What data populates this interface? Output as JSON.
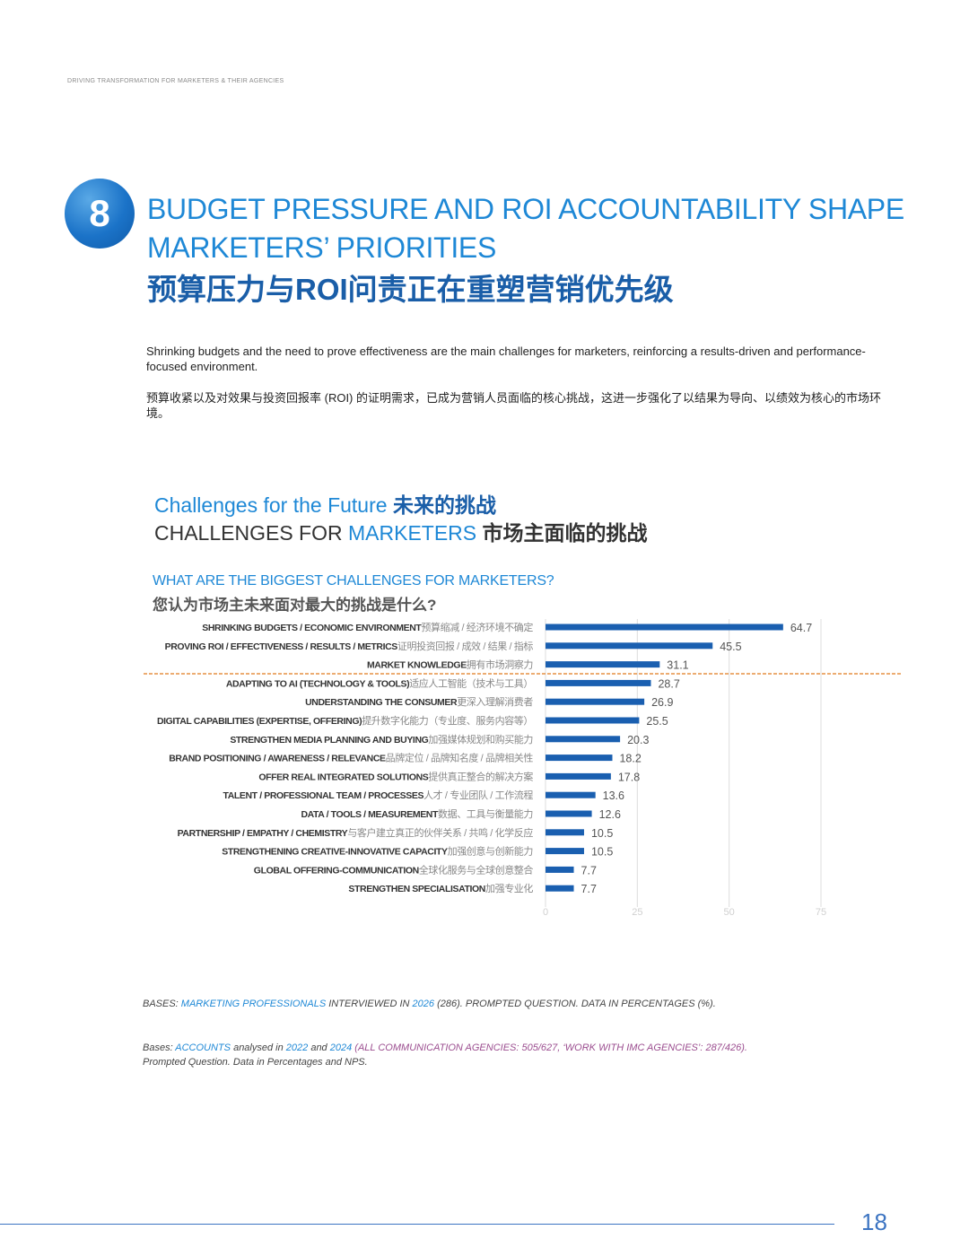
{
  "header": {
    "tag": "DRIVING TRANSFORMATION FOR MARKETERS & THEIR AGENCIES"
  },
  "section": {
    "number": "8",
    "title_en": "BUDGET PRESSURE AND ROI ACCOUNTABILITY SHAPE MARKETERS’ PRIORITIES",
    "title_cn": "预算压力与ROI问责正在重塑营销优先级"
  },
  "intro": {
    "en": "Shrinking budgets and the need to prove effectiveness are the main challenges for marketers, reinforcing a results-driven and performance-focused environment.",
    "cn": "预算收紧以及对效果与投资回报率 (ROI) 的证明需求，已成为营销人员面临的核心挑战，这进一步强化了以结果为导向、以绩效为核心的市场环境。"
  },
  "chart_header": {
    "line1_en": "Challenges for the Future",
    "line1_cn": "未来的挑战",
    "line2_pre": "CHALLENGES FOR",
    "line2_hl": "MARKETERS",
    "line2_cn": "市场主面临的挑战"
  },
  "question": {
    "en": "WHAT ARE THE BIGGEST CHALLENGES FOR MARKETERS?",
    "cn": "您认为市场主未来面对最大的挑战是什么?"
  },
  "chart_data": {
    "type": "bar",
    "orientation": "horizontal",
    "categories": [
      {
        "en": "SHRINKING BUDGETS / ECONOMIC ENVIRONMENT",
        "cn": "预算缩减 / 经济环境不确定"
      },
      {
        "en": "PROVING ROI / EFFECTIVENESS / RESULTS / METRICS",
        "cn": "证明投资回报 / 成效 / 结果 / 指标"
      },
      {
        "en": "MARKET KNOWLEDGE",
        "cn": "拥有市场洞察力"
      },
      {
        "en": "ADAPTING TO AI (TECHNOLOGY & TOOLS)",
        "cn": "适应人工智能（技术与工具）"
      },
      {
        "en": "UNDERSTANDING THE CONSUMER",
        "cn": "更深入理解消费者"
      },
      {
        "en": "DIGITAL CAPABILITIES (EXPERTISE, OFFERING)",
        "cn": "提升数字化能力（专业度、服务内容等）"
      },
      {
        "en": "STRENGTHEN MEDIA PLANNING AND BUYING",
        "cn": "加强媒体规划和购买能力"
      },
      {
        "en": "BRAND POSITIONING / AWARENESS / RELEVANCE",
        "cn": "品牌定位 / 品牌知名度 / 品牌相关性"
      },
      {
        "en": "OFFER REAL INTEGRATED SOLUTIONS",
        "cn": "提供真正整合的解决方案"
      },
      {
        "en": "TALENT / PROFESSIONAL TEAM / PROCESSES",
        "cn": "人才 / 专业团队 / 工作流程"
      },
      {
        "en": "DATA / TOOLS / MEASUREMENT",
        "cn": "数据、工具与衡量能力"
      },
      {
        "en": "PARTNERSHIP / EMPATHY / CHEMISTRY",
        "cn": "与客户建立真正的伙伴关系 / 共鸣 / 化学反应"
      },
      {
        "en": "STRENGTHENING CREATIVE-INNOVATIVE CAPACITY",
        "cn": "加强创意与创新能力"
      },
      {
        "en": "GLOBAL OFFERING-COMMUNICATION",
        "cn": "全球化服务与全球创意整合"
      },
      {
        "en": "STRENGTHEN SPECIALISATION",
        "cn": "加强专业化"
      }
    ],
    "values": [
      64.7,
      45.5,
      31.1,
      28.7,
      26.9,
      25.5,
      20.3,
      18.2,
      17.8,
      13.6,
      12.6,
      10.5,
      10.5,
      7.7,
      7.7
    ],
    "value_labels": [
      "64.7",
      "45.5",
      "31.1",
      "28.7",
      "26.9",
      "25.5",
      "20.3",
      "18.2",
      "17.8",
      "13.6",
      "12.6",
      "10.5",
      "10.5",
      "7.7",
      "7.7"
    ],
    "xlim": [
      0,
      75
    ],
    "xticks": [
      "0",
      "25",
      "50",
      "75"
    ],
    "grid": true,
    "bar_color": "#1a5fb0",
    "divider_after_index": 2,
    "divider_color": "#e07b1f"
  },
  "bases1": {
    "p1": "BASES: ",
    "p2": "MARKETING PROFESSIONALS",
    "p3": " INTERVIEWED IN ",
    "p4": "2026",
    "p5": " (286). PROMPTED QUESTION. DATA IN PERCENTAGES (%)."
  },
  "bases2": {
    "p1": "Bases: ",
    "p2": "ACCOUNTS",
    "p3": " analysed in ",
    "p4": "2022",
    "p5": " and ",
    "p6": "2024",
    "p7": " (ALL COMMUNICATION AGENCIES: 505/627, ‘WORK WITH IMC AGENCIES’: 287/426).",
    "p8": "Prompted Question. Data in Percentages and NPS."
  },
  "footer": {
    "page": "18"
  }
}
